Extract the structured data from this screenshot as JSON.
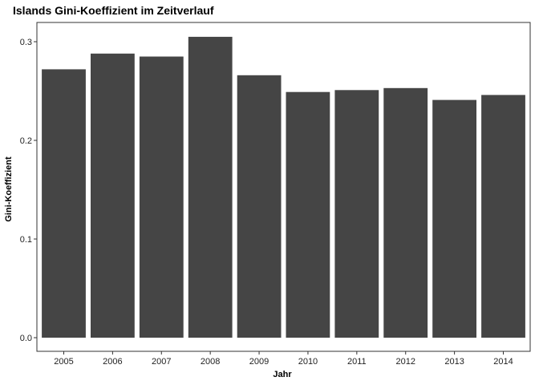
{
  "chart_data": {
    "type": "bar",
    "title": "Islands Gini-Koeffizient im Zeitverlauf",
    "xlabel": "Jahr",
    "ylabel": "Gini-Koeffizient",
    "categories": [
      "2005",
      "2006",
      "2007",
      "2008",
      "2009",
      "2010",
      "2011",
      "2012",
      "2013",
      "2014"
    ],
    "values": [
      0.272,
      0.288,
      0.285,
      0.305,
      0.266,
      0.249,
      0.251,
      0.253,
      0.241,
      0.246
    ],
    "ylim": [
      0,
      0.32
    ],
    "yticks": [
      0.0,
      0.1,
      0.2,
      0.3
    ],
    "ytick_labels": [
      "0.0",
      "0.1",
      "0.2",
      "0.3"
    ],
    "grid": false,
    "legend": "none",
    "colors": {
      "bar": "#454545",
      "panel_border": "#333333"
    }
  }
}
